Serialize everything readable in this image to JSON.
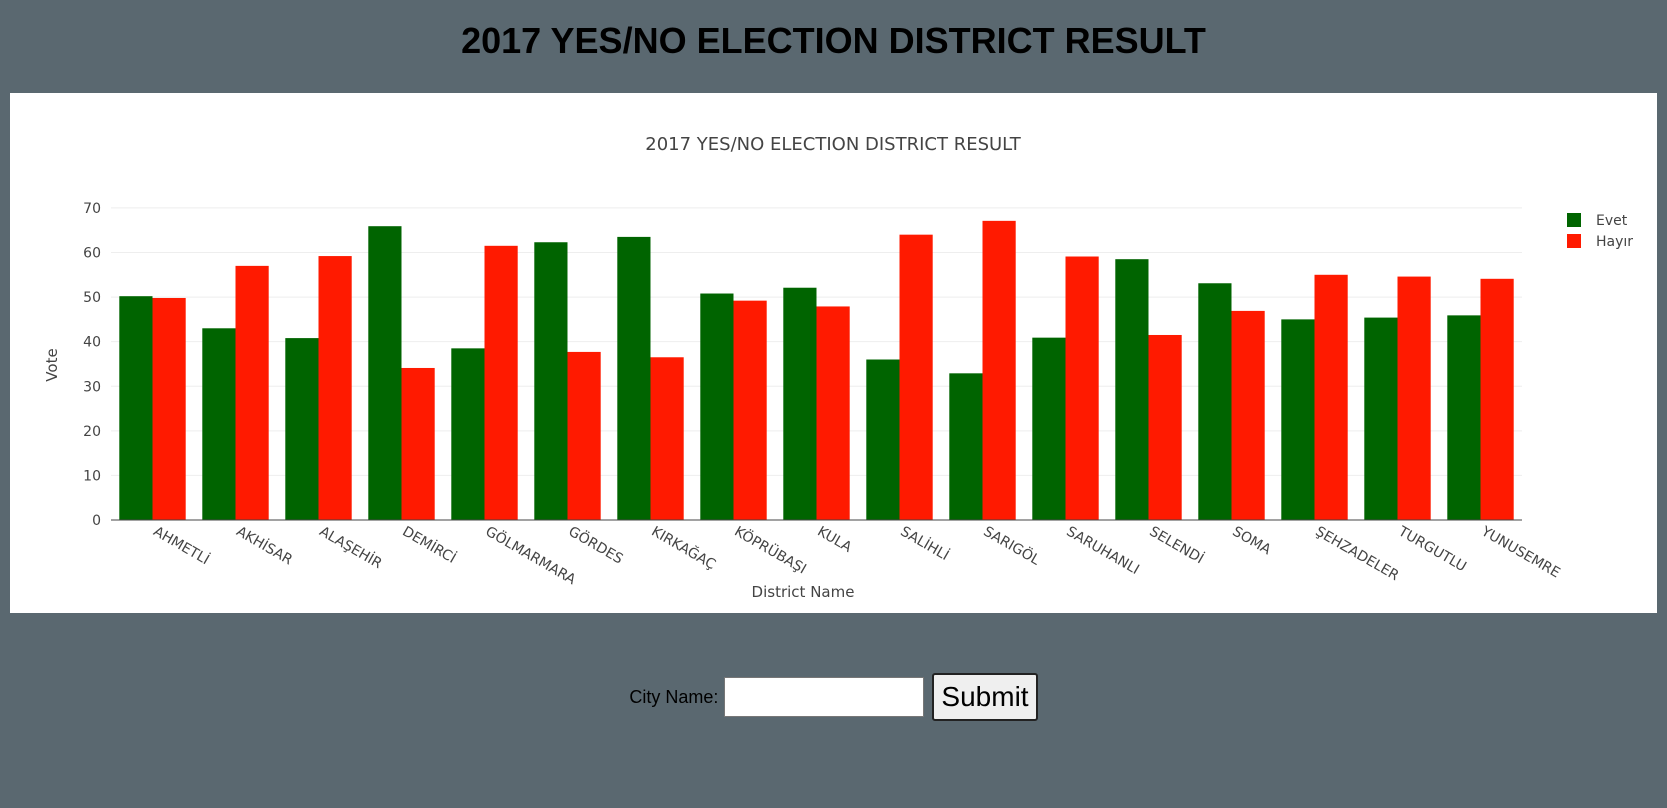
{
  "page": {
    "heading": "2017 YES/NO ELECTION DISTRICT RESULT"
  },
  "form": {
    "city_label": "City Name:",
    "city_value": "",
    "city_placeholder": "",
    "submit_label": "Submit"
  },
  "chart_data": {
    "type": "bar",
    "title": "2017 YES/NO ELECTION DISTRICT RESULT",
    "xlabel": "District Name",
    "ylabel": "Vote",
    "ylim": [
      0,
      72
    ],
    "yticks": [
      0,
      10,
      20,
      30,
      40,
      50,
      60,
      70
    ],
    "grid": true,
    "legend_position": "top-right",
    "categories": [
      "AHMETLİ",
      "AKHİSAR",
      "ALAŞEHİR",
      "DEMİRCİ",
      "GÖLMARMARA",
      "GÖRDES",
      "KIRKAĞAÇ",
      "KÖPRÜBAŞI",
      "KULA",
      "SALİHLİ",
      "SARIGÖL",
      "SARUHANLI",
      "SELENDİ",
      "SOMA",
      "ŞEHZADELER",
      "TURGUTLU",
      "YUNUSEMRE"
    ],
    "series": [
      {
        "name": "Evet",
        "color": "#006400",
        "values": [
          50.2,
          43.0,
          40.8,
          65.9,
          38.5,
          62.3,
          63.5,
          50.8,
          52.1,
          36.0,
          32.9,
          40.9,
          58.5,
          53.1,
          45.0,
          45.4,
          45.9
        ]
      },
      {
        "name": "Hayır",
        "color": "#ff1a00",
        "values": [
          49.8,
          57.0,
          59.2,
          34.1,
          61.5,
          37.7,
          36.5,
          49.2,
          47.9,
          64.0,
          67.1,
          59.1,
          41.5,
          46.9,
          55.0,
          54.6,
          54.1
        ]
      }
    ]
  }
}
